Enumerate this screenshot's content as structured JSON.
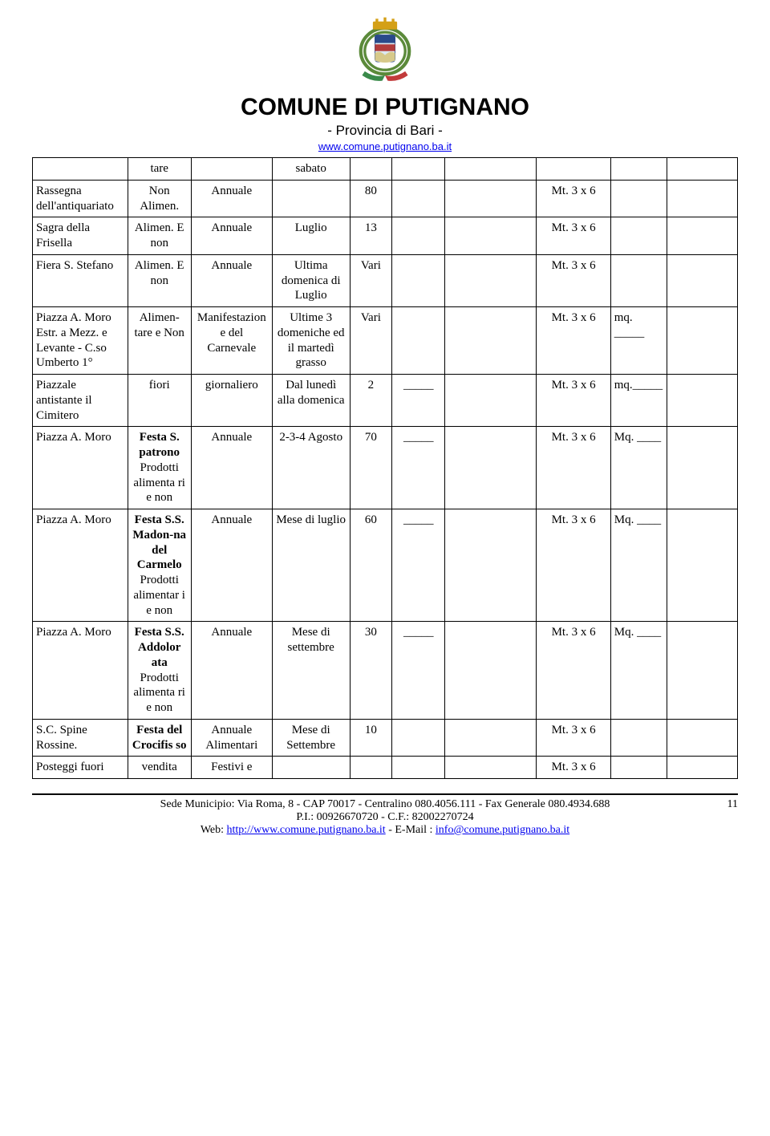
{
  "header": {
    "title": "COMUNE DI PUTIGNANO",
    "subtitle": "- Provincia di Bari -",
    "url_text": "www.comune.putignano.ba.it",
    "crest_colors": {
      "wreath": "#5b8a3a",
      "ribbon_red": "#c23b3b",
      "ribbon_green": "#3a8a4a",
      "crown": "#d4a017",
      "shield_bg": "#dce8f0",
      "shield_top": "#2a4a8a",
      "shield_mid": "#b23b3b",
      "shield_bot": "#d7c98a"
    }
  },
  "table": {
    "size_label": "Mt. 3 x 6",
    "rows": [
      {
        "place": "",
        "type": "tare",
        "freq": "",
        "period": "sabato",
        "qty": "",
        "blank1": "",
        "blank2": "",
        "size": "",
        "mq": "",
        "last": ""
      },
      {
        "place": "Rassegna dell'antiquariato",
        "type": "Non Alimen.",
        "freq": "Annuale",
        "period": "",
        "qty": "80",
        "blank1": "",
        "blank2": "",
        "size": "Mt. 3 x 6",
        "mq": "",
        "last": ""
      },
      {
        "place": "Sagra della Frisella",
        "type": "Alimen. E non",
        "freq": "Annuale",
        "period": "Luglio",
        "qty": "13",
        "blank1": "",
        "blank2": "",
        "size": "Mt. 3 x 6",
        "mq": "",
        "last": ""
      },
      {
        "place": "Fiera S. Stefano",
        "type": "Alimen. E non",
        "freq": "Annuale",
        "period": "Ultima domenica di Luglio",
        "qty": "Vari",
        "blank1": "",
        "blank2": "",
        "size": "Mt. 3 x 6",
        "mq": "",
        "last": ""
      },
      {
        "place": "Piazza A. Moro Estr. a Mezz. e Levante - C.so Umberto 1°",
        "type": "Alimen-tare e Non",
        "freq": "Manifestazione del Carnevale",
        "period": "Ultime 3 domeniche ed il martedì grasso",
        "qty": "Vari",
        "blank1": "",
        "blank2": "",
        "size": "Mt. 3 x 6",
        "mq": "mq. _____",
        "last": ""
      },
      {
        "place": "Piazzale antistante il Cimitero",
        "type": "fiori",
        "freq": "giornaliero",
        "period": "Dal lunedì alla domenica",
        "qty": "2",
        "blank1": "_____",
        "blank2": "",
        "size": "Mt. 3 x 6",
        "mq": "mq._____",
        "last": ""
      },
      {
        "place": "Piazza A. Moro",
        "type_html": "<b>Festa S. patrono</b> Prodotti alimenta ri e non",
        "freq": "Annuale",
        "period": "2-3-4 Agosto",
        "qty": "70",
        "blank1": "_____",
        "blank2": "",
        "size": "Mt. 3 x 6",
        "mq": "Mq. ____",
        "last": ""
      },
      {
        "place": "Piazza A. Moro",
        "type_html": "<b>Festa S.S. Madon-na del Carmelo</b> Prodotti alimentar i e non",
        "freq": "Annuale",
        "period": "Mese di luglio",
        "qty": "60",
        "blank1": "_____",
        "blank2": "",
        "size": "Mt. 3 x 6",
        "mq": "Mq. ____",
        "last": ""
      },
      {
        "place": "Piazza A. Moro",
        "type_html": "<b>Festa S.S. Addolor ata</b> Prodotti alimenta ri e non",
        "freq": "Annuale",
        "period": "Mese di settembre",
        "qty": "30",
        "blank1": "_____",
        "blank2": "",
        "size": "Mt. 3 x 6",
        "mq": "Mq. ____",
        "last": ""
      },
      {
        "place": "S.C. Spine Rossine.",
        "type_html": "<b>Festa del Crocifis so</b>",
        "freq": "Annuale Alimentari",
        "period": "Mese di Settembre",
        "qty": "10",
        "blank1": "",
        "blank2": "",
        "size": "Mt. 3 x 6",
        "mq": "",
        "last": ""
      },
      {
        "place": "Posteggi fuori",
        "type": "vendita",
        "freq": "Festivi e",
        "period": "",
        "qty": "",
        "blank1": "",
        "blank2": "",
        "size": "Mt. 3 x 6",
        "mq": "",
        "last": ""
      }
    ]
  },
  "footer": {
    "line1": "Sede Municipio: Via Roma, 8 - CAP 70017 - Centralino 080.4056.111 - Fax Generale 080.4934.688",
    "line2": "P.I.: 00926670720 - C.F.: 82002270724",
    "line3_prefix": "Web: ",
    "line3_url": "http://www.comune.putignano.ba.it",
    "line3_mid": " - E-Mail : ",
    "line3_email": "info@comune.putignano.ba.it",
    "page_number": "11"
  }
}
